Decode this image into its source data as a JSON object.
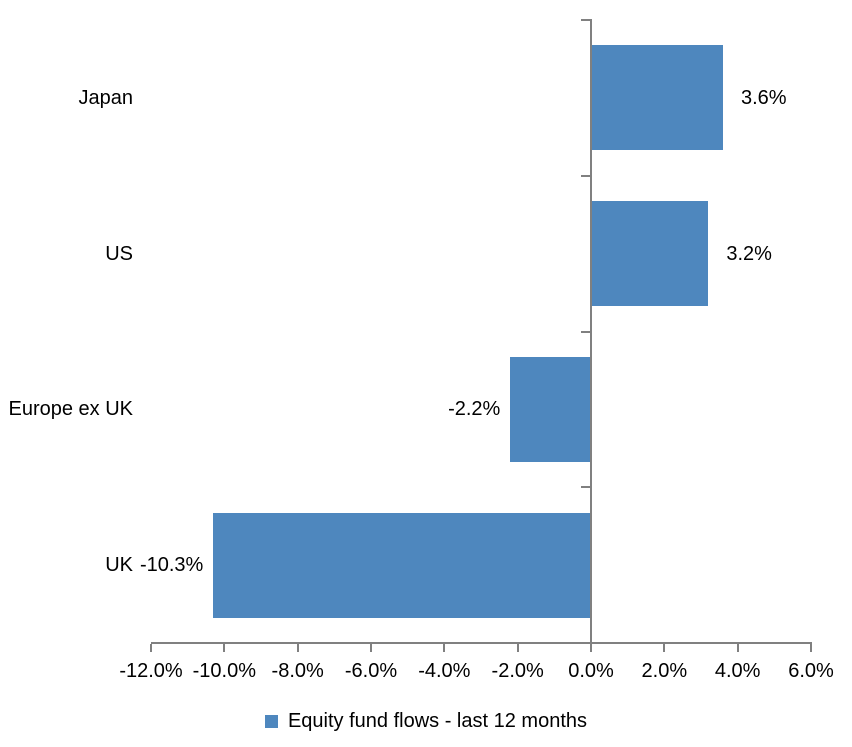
{
  "chart_data": {
    "type": "bar",
    "orientation": "horizontal",
    "title": "",
    "categories": [
      "Japan",
      "US",
      "Europe ex UK",
      "UK"
    ],
    "series": [
      {
        "name": "Equity fund flows - last 12 months",
        "values": [
          3.6,
          3.2,
          -2.2,
          -10.3
        ],
        "labels": [
          "3.6%",
          "3.2%",
          "-2.2%",
          "-10.3%"
        ]
      }
    ],
    "series_name": "Equity fund flows - last 12 months",
    "xlabel": "",
    "ylabel": "",
    "xlim": [
      -12,
      6
    ],
    "x_tick_step": 2,
    "x_tick_labels": [
      "-12.0%",
      "-10.0%",
      "-8.0%",
      "-6.0%",
      "-4.0%",
      "-2.0%",
      "0.0%",
      "2.0%",
      "4.0%",
      "6.0%"
    ],
    "grid": false,
    "legend_position": "bottom",
    "bar_color": "#4E87BE",
    "axis_color": "#808080",
    "text_color": "#000000"
  }
}
